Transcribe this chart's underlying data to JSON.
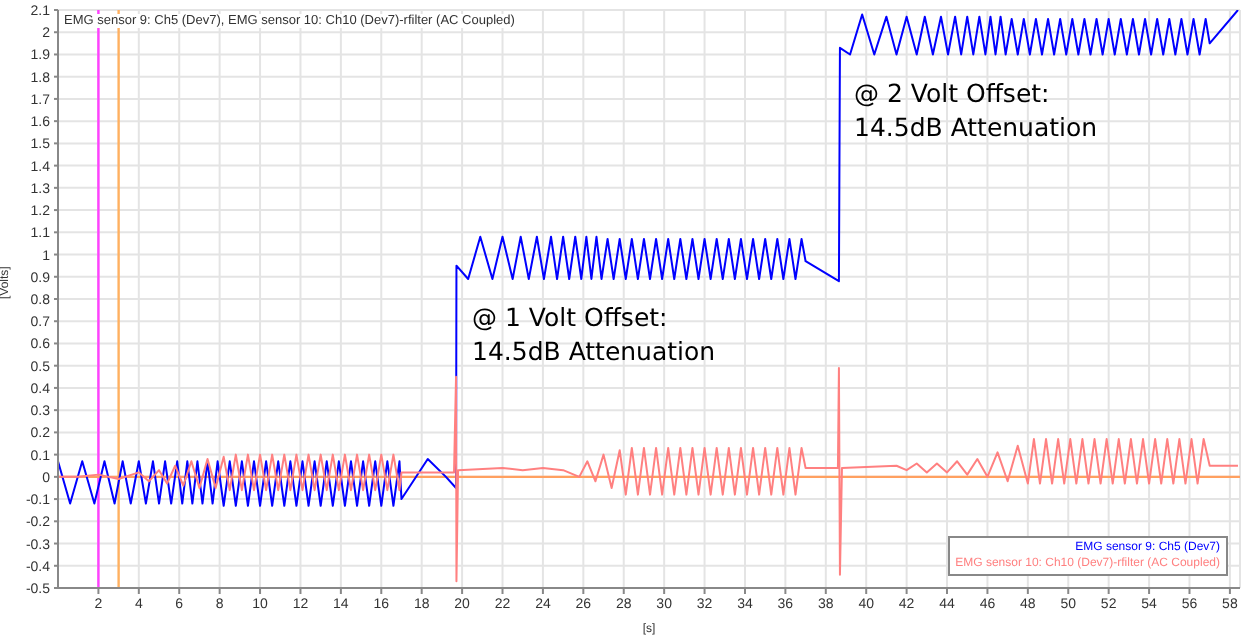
{
  "chart_data": {
    "type": "line",
    "title": "EMG sensor 9: Ch5 (Dev7), EMG sensor 10: Ch10 (Dev7)-rfilter (AC Coupled)",
    "xlabel": "[s]",
    "ylabel": "[Volts]",
    "xlim": [
      0,
      58.5
    ],
    "xticks": [
      2,
      4,
      6,
      8,
      10,
      12,
      14,
      16,
      18,
      20,
      22,
      24,
      26,
      28,
      30,
      32,
      34,
      36,
      38,
      40,
      42,
      44,
      46,
      48,
      50,
      52,
      54,
      56,
      58
    ],
    "ylim": [
      -0.5,
      2.1
    ],
    "yticks": [
      -0.5,
      -0.4,
      -0.3,
      -0.2,
      -0.1,
      0,
      0.1,
      0.2,
      0.3,
      0.4,
      0.5,
      0.6,
      0.7,
      0.8,
      0.9,
      1,
      1.1,
      1.2,
      1.3,
      1.4,
      1.5,
      1.6,
      1.7,
      1.8,
      1.9,
      2,
      2.1
    ],
    "grid": true,
    "legend": "bottom right",
    "marker": "none",
    "line_style": "solid",
    "series": [
      {
        "name": "EMG sensor 9: Ch5 (Dev7)",
        "color": "#0000ff",
        "x": [
          0,
          0.6,
          1.2,
          1.8,
          2.3,
          2.8,
          3.2,
          3.6,
          4.0,
          4.35,
          4.7,
          5.0,
          5.3,
          5.6,
          5.9,
          6.15,
          6.4,
          6.65,
          6.9,
          7.15,
          7.4,
          7.65,
          7.9,
          8.2,
          8.5,
          8.8,
          9.1,
          9.4,
          9.7,
          10.0,
          10.3,
          10.6,
          10.9,
          11.2,
          11.5,
          11.8,
          12.1,
          12.4,
          12.7,
          13.0,
          13.3,
          13.6,
          13.9,
          14.2,
          14.5,
          14.8,
          15.1,
          15.4,
          15.7,
          16.0,
          16.3,
          16.6,
          16.9,
          17.0,
          18.3,
          19.2,
          19.7,
          19.72,
          20.3,
          20.9,
          21.5,
          22.0,
          22.5,
          22.9,
          23.3,
          23.7,
          24.05,
          24.4,
          24.7,
          25.0,
          25.3,
          25.6,
          25.9,
          26.15,
          26.4,
          26.65,
          26.9,
          27.2,
          27.5,
          27.8,
          28.1,
          28.4,
          28.7,
          29.0,
          29.3,
          29.6,
          29.9,
          30.2,
          30.5,
          30.8,
          31.1,
          31.4,
          31.7,
          32.0,
          32.3,
          32.6,
          32.9,
          33.2,
          33.5,
          33.8,
          34.1,
          34.4,
          34.7,
          35.0,
          35.3,
          35.6,
          35.9,
          36.2,
          36.5,
          36.8,
          37.0,
          38.65,
          38.7,
          39.2,
          39.8,
          40.4,
          41.0,
          41.5,
          42.0,
          42.5,
          42.9,
          43.3,
          43.7,
          44.05,
          44.4,
          44.7,
          45.0,
          45.3,
          45.6,
          45.9,
          46.15,
          46.4,
          46.65,
          46.9,
          47.2,
          47.5,
          47.8,
          48.1,
          48.4,
          48.7,
          49.0,
          49.3,
          49.6,
          49.9,
          50.2,
          50.5,
          50.8,
          51.1,
          51.4,
          51.7,
          52.0,
          52.3,
          52.6,
          52.9,
          53.2,
          53.5,
          53.8,
          54.1,
          54.4,
          54.7,
          55.0,
          55.3,
          55.6,
          55.9,
          56.2,
          56.5,
          56.8,
          57.0,
          58.4
        ],
        "values": [
          0.07,
          -0.12,
          0.07,
          -0.12,
          0.07,
          -0.12,
          0.07,
          -0.12,
          0.07,
          -0.12,
          0.07,
          -0.12,
          0.07,
          -0.12,
          0.07,
          -0.12,
          0.07,
          -0.12,
          0.07,
          -0.12,
          0.07,
          -0.12,
          0.07,
          -0.13,
          0.07,
          -0.13,
          0.07,
          -0.13,
          0.07,
          -0.13,
          0.07,
          -0.13,
          0.07,
          -0.13,
          0.07,
          -0.13,
          0.07,
          -0.13,
          0.07,
          -0.13,
          0.07,
          -0.13,
          0.07,
          -0.13,
          0.07,
          -0.13,
          0.07,
          -0.13,
          0.07,
          -0.13,
          0.07,
          -0.13,
          0.07,
          -0.1,
          0.08,
          0.0,
          -0.05,
          0.95,
          0.89,
          1.08,
          0.89,
          1.08,
          0.89,
          1.08,
          0.89,
          1.08,
          0.89,
          1.08,
          0.89,
          1.08,
          0.89,
          1.08,
          0.89,
          1.08,
          0.89,
          1.08,
          0.89,
          1.07,
          0.89,
          1.07,
          0.89,
          1.07,
          0.89,
          1.07,
          0.89,
          1.07,
          0.89,
          1.07,
          0.89,
          1.07,
          0.89,
          1.07,
          0.89,
          1.07,
          0.89,
          1.07,
          0.89,
          1.07,
          0.89,
          1.07,
          0.89,
          1.07,
          0.89,
          1.07,
          0.89,
          1.07,
          0.89,
          1.07,
          0.89,
          1.07,
          0.97,
          0.88,
          1.93,
          1.9,
          2.08,
          1.9,
          2.07,
          1.9,
          2.07,
          1.9,
          2.07,
          1.9,
          2.07,
          1.9,
          2.07,
          1.9,
          2.07,
          1.9,
          2.07,
          1.9,
          2.07,
          1.9,
          2.07,
          1.9,
          2.06,
          1.9,
          2.06,
          1.9,
          2.06,
          1.9,
          2.06,
          1.9,
          2.06,
          1.9,
          2.06,
          1.9,
          2.06,
          1.9,
          2.06,
          1.9,
          2.06,
          1.9,
          2.06,
          1.9,
          2.06,
          1.9,
          2.06,
          1.9,
          2.06,
          1.9,
          2.06,
          1.9,
          2.06,
          1.9,
          2.06,
          1.9,
          2.06,
          1.95,
          2.1
        ]
      },
      {
        "name": "EMG sensor 10: Ch10 (Dev7)-rfilter (AC Coupled)",
        "color": "#ff8080",
        "x": [
          0,
          1,
          2,
          3,
          4,
          4.5,
          5,
          5.4,
          5.8,
          6.2,
          6.6,
          7.0,
          7.4,
          7.8,
          8.2,
          8.5,
          8.8,
          9.1,
          9.4,
          9.7,
          10.0,
          10.3,
          10.6,
          10.9,
          11.2,
          11.5,
          11.8,
          12.1,
          12.4,
          12.7,
          13.0,
          13.3,
          13.6,
          13.9,
          14.2,
          14.5,
          14.8,
          15.1,
          15.4,
          15.7,
          16.0,
          16.3,
          16.6,
          16.9,
          17.0,
          19.6,
          19.7,
          19.72,
          19.8,
          22,
          23,
          24,
          25,
          25.8,
          26.2,
          26.6,
          27.0,
          27.4,
          27.8,
          28.1,
          28.4,
          28.7,
          29.0,
          29.3,
          29.6,
          29.9,
          30.2,
          30.5,
          30.8,
          31.1,
          31.4,
          31.7,
          32.0,
          32.3,
          32.6,
          32.9,
          33.2,
          33.5,
          33.8,
          34.1,
          34.4,
          34.7,
          35.0,
          35.3,
          35.6,
          35.9,
          36.2,
          36.5,
          36.8,
          37.0,
          38.6,
          38.65,
          38.7,
          38.8,
          41.5,
          42,
          42.5,
          43,
          43.5,
          44,
          44.5,
          45,
          45.5,
          46,
          46.5,
          47,
          47.5,
          48,
          48.3,
          48.6,
          48.9,
          49.2,
          49.5,
          49.8,
          50.1,
          50.4,
          50.7,
          51.0,
          51.3,
          51.6,
          51.9,
          52.2,
          52.5,
          52.8,
          53.1,
          53.4,
          53.7,
          54.0,
          54.3,
          54.6,
          54.9,
          55.2,
          55.5,
          55.8,
          56.1,
          56.4,
          56.7,
          57.0,
          58.4
        ],
        "values": [
          0,
          0,
          0.01,
          -0.01,
          0.02,
          -0.02,
          0.03,
          -0.03,
          0.05,
          -0.04,
          0.07,
          -0.05,
          0.08,
          -0.05,
          0.09,
          -0.06,
          0.1,
          -0.06,
          0.1,
          -0.06,
          0.1,
          -0.06,
          0.1,
          -0.06,
          0.1,
          -0.06,
          0.1,
          -0.06,
          0.1,
          -0.06,
          0.1,
          -0.06,
          0.1,
          -0.06,
          0.1,
          -0.06,
          0.1,
          -0.06,
          0.1,
          -0.06,
          0.1,
          -0.06,
          0.1,
          -0.06,
          0.02,
          0.02,
          0.45,
          -0.47,
          0.03,
          0.04,
          0.03,
          0.04,
          0.03,
          0.0,
          0.07,
          -0.02,
          0.1,
          -0.05,
          0.12,
          -0.08,
          0.13,
          -0.08,
          0.13,
          -0.08,
          0.13,
          -0.08,
          0.13,
          -0.08,
          0.13,
          -0.08,
          0.13,
          -0.08,
          0.13,
          -0.08,
          0.13,
          -0.08,
          0.13,
          -0.08,
          0.13,
          -0.08,
          0.13,
          -0.08,
          0.13,
          -0.08,
          0.13,
          -0.08,
          0.13,
          -0.08,
          0.13,
          0.04,
          0.04,
          0.49,
          -0.44,
          0.04,
          0.05,
          0.03,
          0.06,
          0.02,
          0.06,
          0.02,
          0.07,
          0.01,
          0.08,
          0.0,
          0.11,
          -0.02,
          0.14,
          -0.03,
          0.17,
          -0.03,
          0.17,
          -0.03,
          0.17,
          -0.03,
          0.17,
          -0.03,
          0.17,
          -0.03,
          0.17,
          -0.03,
          0.17,
          -0.03,
          0.17,
          -0.03,
          0.17,
          -0.03,
          0.17,
          -0.03,
          0.17,
          -0.03,
          0.17,
          -0.03,
          0.17,
          -0.03,
          0.17,
          -0.03,
          0.17,
          0.05,
          0.05
        ]
      }
    ],
    "ref_lines": [
      {
        "axis": "x",
        "value": 2,
        "color": "#ff40ff"
      },
      {
        "axis": "x",
        "value": 3,
        "color": "#ffb060"
      },
      {
        "axis": "y",
        "value": 0,
        "color": "#ffa060"
      }
    ],
    "annotations": [
      "@ 1 Volt Offset:\n14.5dB Attenuation",
      "@ 2 Volt Offset:\n14.5dB Attenuation"
    ]
  }
}
